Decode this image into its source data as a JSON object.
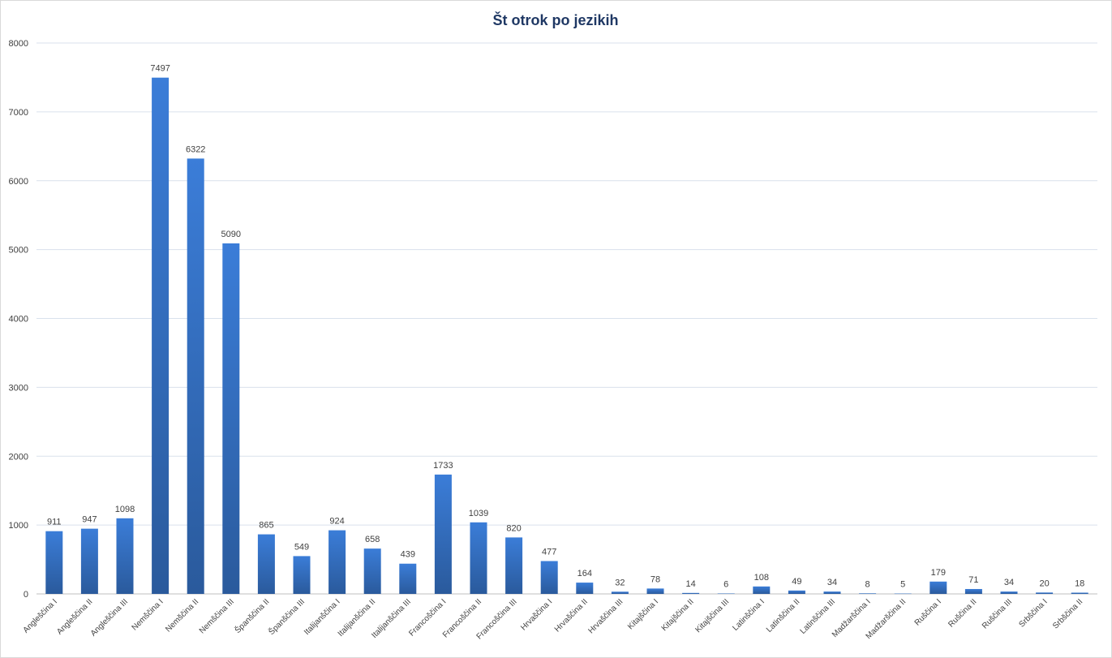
{
  "chart_data": {
    "type": "bar",
    "title": "Št otrok po jezikih",
    "xlabel": "",
    "ylabel": "",
    "ylim": [
      0,
      8000
    ],
    "yticks": [
      0,
      1000,
      2000,
      3000,
      4000,
      5000,
      6000,
      7000,
      8000
    ],
    "grid": true,
    "legend": "none",
    "bar_color_top": "#3b7dd8",
    "bar_color_bottom": "#2a5a9c",
    "categories": [
      "Angleščina I",
      "Angleščina II",
      "Angleščina III",
      "Nemščina I",
      "Nemščina II",
      "Nemščina III",
      "Španščina II",
      "Španščina III",
      "Italijanščina I",
      "Italijanščina II",
      "Italijanščina III",
      "Francoščina I",
      "Francoščina II",
      "Francoščina III",
      "Hrvaščina I",
      "Hrvaščina II",
      "Hrvaščina III",
      "Kitajščina I",
      "Kitajščina II",
      "Kitajščina III",
      "Latinščina I",
      "Latinščina II",
      "Latinščina III",
      "Madžarščina I",
      "Madžarščina II",
      "Ruščina I",
      "Ruščina II",
      "Ruščina III",
      "Srbščina I",
      "Srbščina II"
    ],
    "values": [
      911,
      947,
      1098,
      7497,
      6322,
      5090,
      865,
      549,
      924,
      658,
      439,
      1733,
      1039,
      820,
      477,
      164,
      32,
      78,
      14,
      6,
      108,
      49,
      34,
      8,
      5,
      179,
      71,
      34,
      20,
      18
    ]
  }
}
